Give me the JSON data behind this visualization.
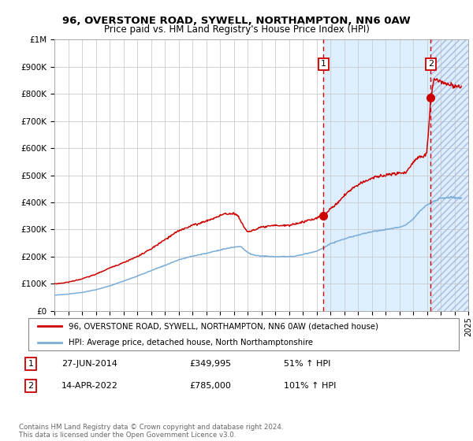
{
  "title1": "96, OVERSTONE ROAD, SYWELL, NORTHAMPTON, NN6 0AW",
  "title2": "Price paid vs. HM Land Registry's House Price Index (HPI)",
  "legend_line1": "96, OVERSTONE ROAD, SYWELL, NORTHAMPTON, NN6 0AW (detached house)",
  "legend_line2": "HPI: Average price, detached house, North Northamptonshire",
  "annotation1_label": "1",
  "annotation1_date": "27-JUN-2014",
  "annotation1_price": "£349,995",
  "annotation1_hpi": "51% ↑ HPI",
  "annotation2_label": "2",
  "annotation2_date": "14-APR-2022",
  "annotation2_price": "£785,000",
  "annotation2_hpi": "101% ↑ HPI",
  "footer": "Contains HM Land Registry data © Crown copyright and database right 2024.\nThis data is licensed under the Open Government Licence v3.0.",
  "red_color": "#cc0000",
  "blue_color": "#7aacd6",
  "bg_color": "#ddeeff",
  "grid_color": "#cccccc",
  "ylim": [
    0,
    1000000
  ],
  "sale1_x": 2014.5,
  "sale1_y": 349995,
  "sale2_x": 2022.28,
  "sale2_y": 785000,
  "xmin": 1995,
  "xmax": 2025,
  "hpi_points_x": [
    1995,
    1996,
    1997,
    1998,
    1999,
    2000,
    2001,
    2002,
    2003,
    2004,
    2005,
    2006,
    2007,
    2008,
    2008.5,
    2009,
    2009.5,
    2010,
    2011,
    2012,
    2012.5,
    2013,
    2014,
    2014.5,
    2015,
    2016,
    2017,
    2018,
    2019,
    2020,
    2020.5,
    2021,
    2021.5,
    2022,
    2022.5,
    2023,
    2023.5,
    2024,
    2024.5
  ],
  "hpi_points_y": [
    58000,
    62000,
    68000,
    78000,
    92000,
    110000,
    128000,
    148000,
    168000,
    188000,
    202000,
    212000,
    225000,
    235000,
    238000,
    215000,
    205000,
    202000,
    200000,
    200000,
    202000,
    208000,
    220000,
    232000,
    248000,
    265000,
    280000,
    292000,
    300000,
    308000,
    318000,
    340000,
    368000,
    390000,
    405000,
    415000,
    418000,
    418000,
    415000
  ],
  "red_points_x": [
    1995,
    1995.5,
    1996,
    1997,
    1998,
    1999,
    2000,
    2001,
    2002,
    2003,
    2004,
    2005,
    2005.5,
    2006,
    2006.5,
    2007,
    2007.5,
    2008,
    2008.3,
    2008.8,
    2009,
    2009.5,
    2010,
    2011,
    2012,
    2013,
    2013.5,
    2014,
    2014.5,
    2015,
    2015.5,
    2016,
    2016.5,
    2017,
    2017.5,
    2018,
    2018.5,
    2019,
    2019.5,
    2020,
    2020.5,
    2021,
    2021.2,
    2021.8,
    2022.0,
    2022.28,
    2022.5,
    2023,
    2023.5,
    2024,
    2024.5
  ],
  "red_points_y": [
    100000,
    102000,
    106000,
    118000,
    135000,
    158000,
    178000,
    200000,
    228000,
    262000,
    295000,
    316000,
    322000,
    332000,
    340000,
    352000,
    358000,
    360000,
    350000,
    305000,
    292000,
    298000,
    308000,
    315000,
    315000,
    328000,
    335000,
    342000,
    349995,
    375000,
    398000,
    425000,
    448000,
    465000,
    478000,
    490000,
    496000,
    500000,
    505000,
    508000,
    510000,
    548000,
    560000,
    575000,
    582000,
    785000,
    852000,
    845000,
    835000,
    828000,
    825000
  ]
}
